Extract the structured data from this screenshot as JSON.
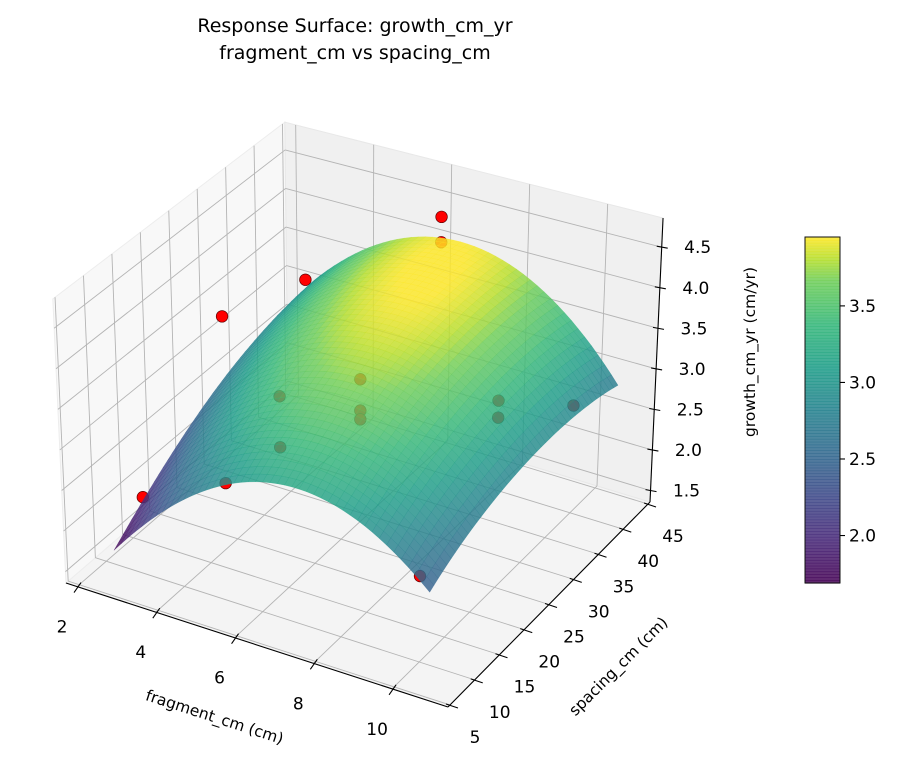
{
  "chart_data": {
    "type": "surface",
    "title": [
      "Response Surface: growth_cm_yr",
      "fragment_cm vs spacing_cm"
    ],
    "xlabel": "fragment_cm (cm)",
    "ylabel": "spacing_cm (cm)",
    "zlabel": "growth_cm_yr (cm/yr)",
    "view": {
      "elev": 30,
      "azim": -60
    },
    "grid": true,
    "xlim": [
      1.72,
      11.42
    ],
    "ylim": [
      4.6,
      45.4
    ],
    "zlim": [
      1.36,
      4.86
    ],
    "xticks": [
      2,
      4,
      6,
      8,
      10
    ],
    "xtick_labels": [
      "2",
      "4",
      "6",
      "8",
      "10"
    ],
    "yticks": [
      5,
      10,
      15,
      20,
      25,
      30,
      35,
      40,
      45
    ],
    "ytick_labels": [
      "5",
      "10",
      "15",
      "20",
      "25",
      "30",
      "35",
      "40",
      "45"
    ],
    "zticks": [
      1.5,
      2.0,
      2.5,
      3.0,
      3.5,
      4.0,
      4.5
    ],
    "ztick_labels": [
      "1.5",
      "2.0",
      "2.5",
      "3.0",
      "3.5",
      "4.0",
      "4.5"
    ],
    "colormap": "viridis",
    "colorbar": {
      "clim": [
        1.69,
        3.95
      ],
      "ticks": [
        2.0,
        2.5,
        3.0,
        3.5
      ],
      "tick_labels": [
        "2.0",
        "2.5",
        "3.0",
        "3.5"
      ]
    },
    "surface": {
      "x": [
        2.5,
        4.5,
        6.5,
        8.5,
        10.5
      ],
      "y": [
        8,
        17,
        26,
        35,
        45
      ],
      "z": [
        [
          1.69,
          2.67,
          3.15,
          3.06,
          2.42
        ],
        [
          2.17,
          3.14,
          3.56,
          3.41,
          2.71
        ],
        [
          2.56,
          3.47,
          3.83,
          3.62,
          2.85
        ],
        [
          2.82,
          3.67,
          3.96,
          3.69,
          2.86
        ],
        [
          2.94,
          3.72,
          3.94,
          3.6,
          2.7
        ]
      ],
      "alpha": 0.82
    },
    "points": {
      "color": "#ff0000",
      "x": [
        3,
        3,
        3,
        3,
        6.5,
        6.5,
        6.5,
        6.5,
        6.5,
        6.5,
        6.5,
        10,
        10,
        10,
        10
      ],
      "y": [
        10,
        25,
        25,
        40,
        10,
        10,
        25,
        25,
        25,
        40,
        40,
        10,
        25,
        25,
        40
      ],
      "z": [
        2.31,
        3.71,
        1.61,
        3.31,
        4.1,
        3.47,
        3.43,
        3.04,
        2.93,
        4.58,
        4.26,
        2.42,
        3.67,
        3.46,
        2.69
      ]
    }
  }
}
